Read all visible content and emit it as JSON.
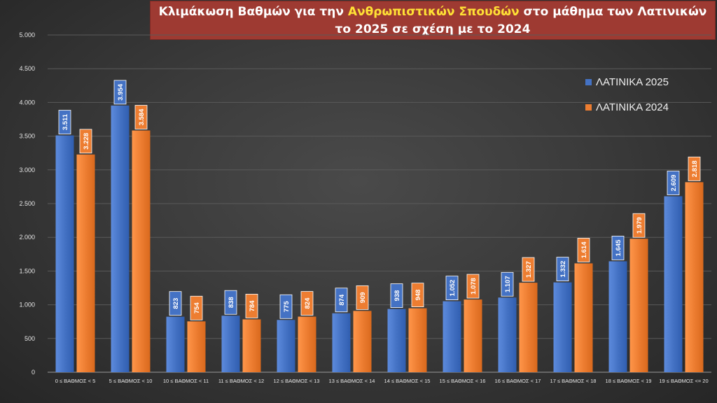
{
  "title": {
    "line1_part1": "Κλιμάκωση Βαθμών για την ",
    "line1_highlight": "Ανθρωπιστικών Σπουδών",
    "line1_part2": " στο μάθημα των Λατινικών",
    "line2": "το 2025 σε σχέση με το 2024"
  },
  "chart_data": {
    "type": "bar",
    "categories": [
      "0 ≤ ΒΑΘΜΟΣ < 5",
      "5 ≤ ΒΑΘΜΟΣ < 10",
      "10 ≤ ΒΑΘΜΟΣ < 11",
      "11 ≤ ΒΑΘΜΟΣ < 12",
      "12 ≤ ΒΑΘΜΟΣ < 13",
      "13 ≤ ΒΑΘΜΟΣ < 14",
      "14 ≤ ΒΑΘΜΟΣ < 15",
      "15 ≤ ΒΑΘΜΟΣ < 16",
      "16 ≤ ΒΑΘΜΟΣ < 17",
      "17 ≤ ΒΑΘΜΟΣ < 18",
      "18 ≤ ΒΑΘΜΟΣ < 19",
      "19 ≤ ΒΑΘΜΟΣ <= 20"
    ],
    "series": [
      {
        "name": "ΛΑΤΙΝΙΚΑ 2025",
        "color": "#4472c4",
        "values": [
          3511,
          3954,
          823,
          838,
          775,
          874,
          938,
          1052,
          1107,
          1332,
          1645,
          2609
        ],
        "labels": [
          "3.511",
          "3.954",
          "823",
          "838",
          "775",
          "874",
          "938",
          "1.052",
          "1.107",
          "1.332",
          "1.645",
          "2.609"
        ]
      },
      {
        "name": "ΛΑΤΙΝΙΚΑ 2024",
        "color": "#ed7d31",
        "values": [
          3228,
          3584,
          754,
          784,
          824,
          909,
          948,
          1078,
          1327,
          1614,
          1979,
          2818
        ],
        "labels": [
          "3.228",
          "3.584",
          "754",
          "784",
          "824",
          "909",
          "948",
          "1.078",
          "1.327",
          "1.614",
          "1.979",
          "2.818"
        ]
      }
    ],
    "ylim": [
      0,
      5000
    ],
    "yticks": [
      0,
      500,
      1000,
      1500,
      2000,
      2500,
      3000,
      3500,
      4000,
      4500,
      5000
    ],
    "ytick_labels": [
      "0",
      "500",
      "1.000",
      "1.500",
      "2.000",
      "2.500",
      "3.000",
      "3.500",
      "4.000",
      "4.500",
      "5.000"
    ],
    "grid": true,
    "legend_position": "top-right"
  }
}
